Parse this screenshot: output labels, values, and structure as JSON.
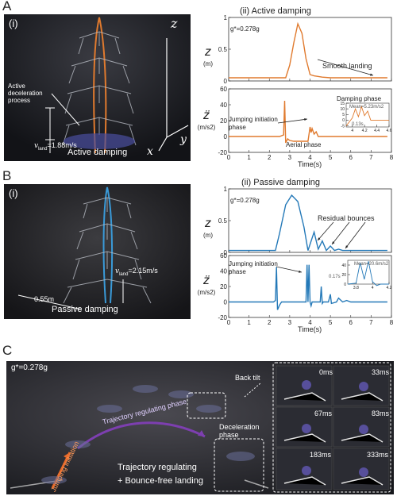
{
  "panel_a": {
    "letter": "A",
    "photo_label": "(i)",
    "axis_z": "z",
    "axis_y": "y",
    "axis_x": "x",
    "annotation": "Active deceleration process",
    "v_sym": "v",
    "v_sub": "land",
    "v_val": "=1.88m/s",
    "caption": "Active damping",
    "plot_title": "(ii)  Active damping",
    "g_label": "g*=0.278g",
    "smooth_landing": "Smooth landing",
    "jump_label": "Jumping initiation phase",
    "aerial_label": "Aerial phase",
    "damping_label": "Damping phase",
    "inset_mean": "Mean=5.23m/s2",
    "inset_time": "0.13s",
    "xlabel": "Time(s)"
  },
  "panel_b": {
    "letter": "B",
    "photo_label": "(i)",
    "dist": "0.55m",
    "v_sym": "v",
    "v_sub": "land",
    "v_val": "=2.15m/s",
    "caption": "Passive damping",
    "plot_title": "(ii) Passive damping",
    "g_label": "g*=0.278g",
    "residual": "Residual bounces",
    "jump_label": "Jumping initiation phase",
    "inset_mean": "Mean=20.6m/s2",
    "inset_time": "0.17s",
    "xlabel": "Time(s)"
  },
  "panel_c": {
    "letter": "C",
    "g_label": "g*=0.278g",
    "back_tilt": "Back tilt",
    "traj_phase": "Trajectory regulating phase",
    "jump_init": "Jumping initiation",
    "decel_phase": "Deceleration phase",
    "caption1": "Trajectory regulating",
    "caption2": "+ Bounce-free landing",
    "frames": [
      "0ms",
      "33ms",
      "67ms",
      "83ms",
      "183ms",
      "333ms"
    ]
  },
  "chart_data": [
    {
      "type": "line",
      "id": "a-z",
      "ylabel": "z",
      "yunit": "(m)",
      "x": [
        0,
        2.8,
        3.0,
        3.2,
        3.4,
        3.6,
        3.8,
        4.0,
        4.2,
        4.6,
        5.0,
        6.0,
        7.8
      ],
      "values": [
        0.05,
        0.05,
        0.25,
        0.6,
        0.9,
        0.75,
        0.35,
        0.1,
        0.08,
        0.06,
        0.05,
        0.05,
        0.05
      ],
      "xlim": [
        0,
        8
      ],
      "ylim": [
        0,
        1
      ],
      "xticks": [
        0,
        1,
        2,
        3,
        4,
        5,
        6,
        7,
        8
      ],
      "yticks": [
        0,
        0.5,
        1
      ],
      "color": "#e07a2e"
    },
    {
      "type": "line",
      "id": "a-acc",
      "ylabel": "z̈",
      "yunit": "(m/s2)",
      "x": [
        0,
        2.5,
        2.7,
        2.75,
        2.8,
        2.9,
        3.0,
        3.2,
        3.6,
        3.9,
        4.0,
        4.05,
        4.1,
        4.2,
        4.3,
        4.4,
        4.6,
        5.0,
        6.0,
        7.8
      ],
      "values": [
        0,
        0,
        2,
        45,
        -8,
        -3,
        -5,
        -6,
        -6,
        -6,
        12,
        5,
        10,
        3,
        6,
        0,
        0,
        0,
        0,
        0
      ],
      "xlim": [
        0,
        8
      ],
      "ylim": [
        -20,
        60
      ],
      "xticks": [
        0,
        1,
        2,
        3,
        4,
        5,
        6,
        7,
        8
      ],
      "yticks": [
        -20,
        0,
        20,
        40,
        60
      ],
      "color": "#e07a2e"
    },
    {
      "type": "line",
      "id": "b-z",
      "ylabel": "z",
      "yunit": "(m)",
      "x": [
        0,
        2.3,
        2.5,
        2.8,
        3.1,
        3.4,
        3.7,
        3.9,
        4.2,
        4.4,
        4.6,
        4.8,
        5.0,
        5.2,
        5.4,
        5.6,
        6.0,
        7.8
      ],
      "values": [
        0.03,
        0.03,
        0.3,
        0.75,
        0.9,
        0.8,
        0.4,
        0.03,
        0.32,
        0.05,
        0.18,
        0.03,
        0.1,
        0.03,
        0.05,
        0.03,
        0.03,
        0.03
      ],
      "xlim": [
        0,
        8
      ],
      "ylim": [
        0,
        1
      ],
      "xticks": [
        0,
        1,
        2,
        3,
        4,
        5,
        6,
        7,
        8
      ],
      "yticks": [
        0,
        0.5,
        1
      ],
      "color": "#2479b8"
    },
    {
      "type": "line",
      "id": "b-acc",
      "ylabel": "z̈",
      "yunit": "(m/s2)",
      "x": [
        0,
        2.2,
        2.3,
        2.35,
        2.4,
        2.5,
        2.6,
        3.8,
        3.85,
        3.9,
        3.95,
        4.0,
        4.05,
        4.1,
        4.5,
        4.55,
        4.6,
        4.65,
        4.9,
        5.0,
        5.05,
        5.3,
        5.4,
        5.6,
        5.8,
        6.0,
        7.8
      ],
      "values": [
        0,
        0,
        2,
        45,
        -10,
        -4,
        0,
        0,
        48,
        0,
        48,
        0,
        -5,
        0,
        0,
        20,
        -2,
        0,
        0,
        10,
        -2,
        0,
        5,
        0,
        2,
        0,
        0
      ],
      "xlim": [
        0,
        8
      ],
      "ylim": [
        -20,
        60
      ],
      "xticks": [
        0,
        1,
        2,
        3,
        4,
        5,
        6,
        7,
        8
      ],
      "yticks": [
        -20,
        0,
        20,
        40,
        60
      ],
      "color": "#2479b8"
    },
    {
      "type": "line",
      "id": "a-inset",
      "ylabel": "z̈ (m/s2)",
      "x": [
        3.9,
        4.0,
        4.05,
        4.1,
        4.15,
        4.2,
        4.25,
        4.3,
        4.4,
        4.5,
        4.6
      ],
      "values": [
        -5,
        2,
        10,
        3,
        12,
        4,
        8,
        0,
        0,
        0,
        0
      ],
      "xlim": [
        3.9,
        4.6
      ],
      "ylim": [
        -6,
        15
      ],
      "xticks": [
        4,
        4.2,
        4.4,
        4.6
      ],
      "yticks": [
        -5,
        0,
        5,
        10,
        15
      ],
      "color": "#e07a2e"
    },
    {
      "type": "line",
      "id": "b-inset",
      "ylabel": "z̈",
      "x": [
        3.7,
        3.8,
        3.85,
        3.9,
        3.95,
        4.0,
        4.05,
        4.1,
        4.2
      ],
      "values": [
        0,
        2,
        45,
        10,
        48,
        5,
        -3,
        0,
        0
      ],
      "xlim": [
        3.7,
        4.2
      ],
      "ylim": [
        0,
        50
      ],
      "xticks": [
        3.8,
        4,
        4.2
      ],
      "yticks": [
        0,
        20,
        40
      ],
      "color": "#2479b8"
    }
  ]
}
